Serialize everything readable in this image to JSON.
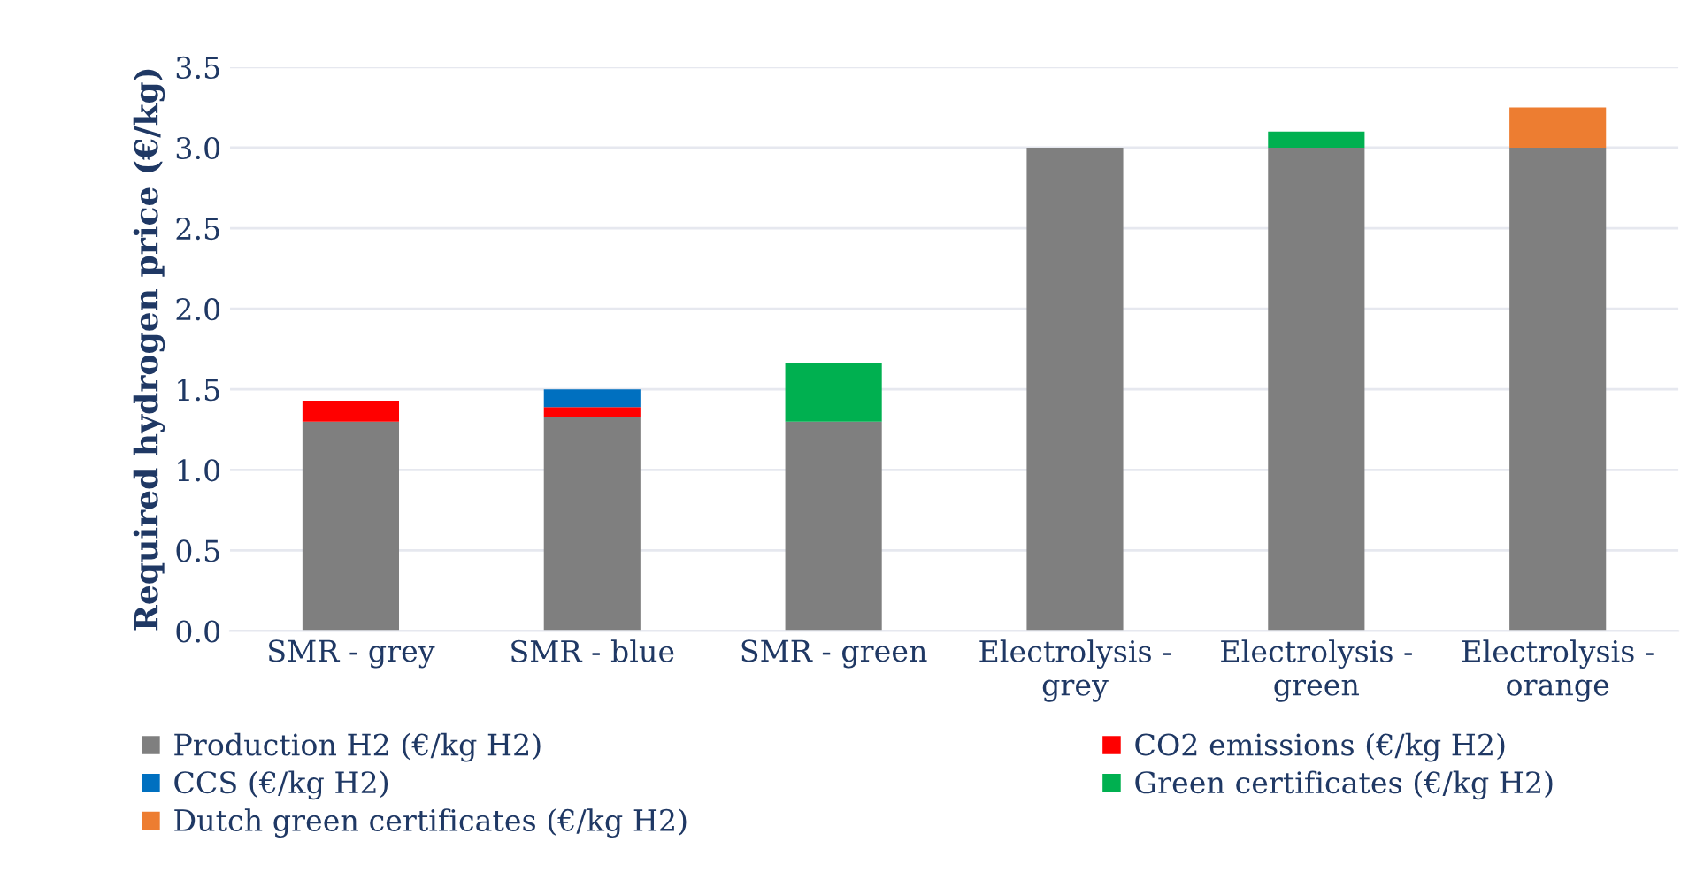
{
  "chart_data": {
    "type": "bar",
    "stacked": true,
    "ylabel": "Required hydrogen price (€/kg)",
    "categories": [
      "SMR - grey",
      "SMR - blue",
      "SMR - green",
      "Electrolysis -\ngrey",
      "Electrolysis -\ngreen",
      "Electrolysis -\norange"
    ],
    "series": [
      {
        "name": "Production H2 (€/kg H2)",
        "color": "#7f7f7f",
        "values": [
          1.3,
          1.33,
          1.3,
          3.0,
          3.0,
          3.0
        ]
      },
      {
        "name": "CO2 emissions (€/kg H2)",
        "color": "#ff0000",
        "values": [
          0.13,
          0.06,
          null,
          null,
          null,
          null
        ]
      },
      {
        "name": "CCS (€/kg H2)",
        "color": "#0070c0",
        "values": [
          null,
          0.11,
          null,
          null,
          null,
          null
        ]
      },
      {
        "name": "Green certificates (€/kg H2)",
        "color": "#00b050",
        "values": [
          null,
          null,
          0.36,
          null,
          0.1,
          null
        ]
      },
      {
        "name": "Dutch green certificates (€/kg H2)",
        "color": "#ed7d31",
        "values": [
          null,
          null,
          null,
          null,
          null,
          0.25
        ]
      }
    ],
    "ylim": [
      0,
      3.5
    ],
    "yticks": [
      {
        "value": 0,
        "label": "0.0"
      },
      {
        "value": 0.5,
        "label": "0.5"
      },
      {
        "value": 1,
        "label": "1.0"
      },
      {
        "value": 1.5,
        "label": "1.5"
      },
      {
        "value": 2,
        "label": "2.0"
      },
      {
        "value": 2.5,
        "label": "2.5"
      },
      {
        "value": 3,
        "label": "3.0"
      },
      {
        "value": 3.5,
        "label": "3.5"
      }
    ],
    "grid": "y",
    "legend": "bottom"
  }
}
